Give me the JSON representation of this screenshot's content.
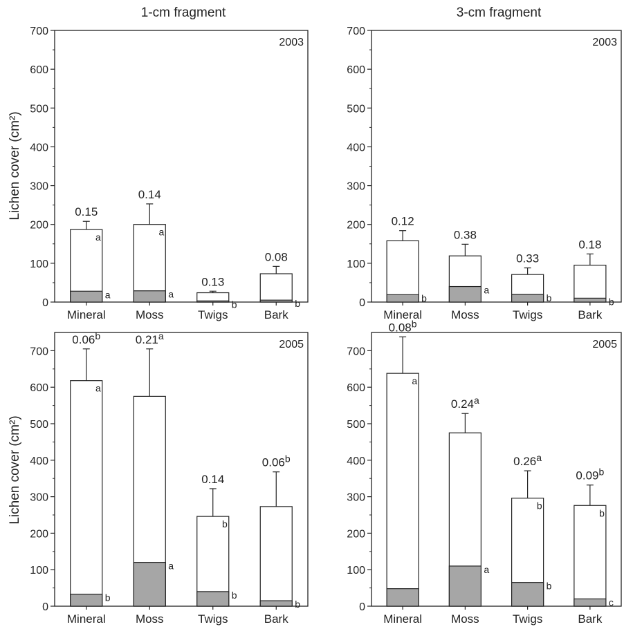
{
  "figure": {
    "column_titles": [
      "1-cm fragment",
      "3-cm fragment"
    ],
    "ylabel": "Lichen cover (cm²)"
  },
  "chart_data": [
    {
      "type": "bar",
      "stacked_overlay": true,
      "panel": "1-cm fragment, 2003",
      "year": "2003",
      "categories": [
        "Mineral",
        "Moss",
        "Twigs",
        "Bark"
      ],
      "ylim": [
        0,
        700
      ],
      "yticks": [
        0,
        100,
        200,
        300,
        400,
        500,
        600,
        700
      ],
      "series": [
        {
          "values": [
            187,
            200,
            24,
            73
          ],
          "errors": [
            208,
            253,
            28,
            92
          ]
        },
        {
          "values": [
            28,
            29,
            3,
            5
          ]
        }
      ],
      "top_letters": [
        "a",
        "a",
        "",
        ""
      ],
      "bottom_letters": [
        "a",
        "a",
        "b",
        "b"
      ],
      "ratios": [
        {
          "text": "0.15",
          "sup": ""
        },
        {
          "text": "0.14",
          "sup": ""
        },
        {
          "text": "0.13",
          "sup": ""
        },
        {
          "text": "0.08",
          "sup": ""
        }
      ]
    },
    {
      "type": "bar",
      "stacked_overlay": true,
      "panel": "3-cm fragment, 2003",
      "year": "2003",
      "categories": [
        "Mineral",
        "Moss",
        "Twigs",
        "Bark"
      ],
      "ylim": [
        0,
        700
      ],
      "yticks": [
        0,
        100,
        200,
        300,
        400,
        500,
        600,
        700
      ],
      "series": [
        {
          "values": [
            158,
            119,
            71,
            95
          ],
          "errors": [
            184,
            149,
            88,
            124
          ]
        },
        {
          "values": [
            19,
            40,
            20,
            10
          ]
        }
      ],
      "top_letters": [
        "",
        "",
        "",
        ""
      ],
      "bottom_letters": [
        "b",
        "a",
        "b",
        "b"
      ],
      "ratios": [
        {
          "text": "0.12",
          "sup": ""
        },
        {
          "text": "0.38",
          "sup": ""
        },
        {
          "text": "0.33",
          "sup": ""
        },
        {
          "text": "0.18",
          "sup": ""
        }
      ]
    },
    {
      "type": "bar",
      "stacked_overlay": true,
      "panel": "1-cm fragment, 2005",
      "year": "2005",
      "categories": [
        "Mineral",
        "Moss",
        "Twigs",
        "Bark"
      ],
      "ylim": [
        0,
        750
      ],
      "yticks": [
        0,
        100,
        200,
        300,
        400,
        500,
        600,
        700
      ],
      "series": [
        {
          "values": [
            618,
            575,
            246,
            273
          ],
          "errors": [
            705,
            705,
            322,
            368
          ]
        },
        {
          "values": [
            33,
            120,
            40,
            15
          ]
        }
      ],
      "top_letters": [
        "a",
        "",
        "b",
        ""
      ],
      "bottom_letters": [
        "b",
        "a",
        "b",
        "b"
      ],
      "ratios": [
        {
          "text": "0.06",
          "sup": "b"
        },
        {
          "text": "0.21",
          "sup": "a"
        },
        {
          "text": "0.14",
          "sup": ""
        },
        {
          "text": "0.06",
          "sup": "b"
        }
      ]
    },
    {
      "type": "bar",
      "stacked_overlay": true,
      "panel": "3-cm fragment, 2005",
      "year": "2005",
      "categories": [
        "Mineral",
        "Moss",
        "Twigs",
        "Bark"
      ],
      "ylim": [
        0,
        750
      ],
      "yticks": [
        0,
        100,
        200,
        300,
        400,
        500,
        600,
        700
      ],
      "series": [
        {
          "values": [
            638,
            475,
            296,
            276
          ],
          "errors": [
            738,
            528,
            371,
            332
          ]
        },
        {
          "values": [
            48,
            110,
            65,
            20
          ]
        }
      ],
      "top_letters": [
        "a",
        "",
        "b",
        "b"
      ],
      "bottom_letters": [
        "",
        "a",
        "b",
        "c"
      ],
      "ratios": [
        {
          "text": "0.08",
          "sup": "b"
        },
        {
          "text": "0.24",
          "sup": "a"
        },
        {
          "text": "0.26",
          "sup": "a"
        },
        {
          "text": "0.09",
          "sup": "b"
        }
      ]
    }
  ]
}
